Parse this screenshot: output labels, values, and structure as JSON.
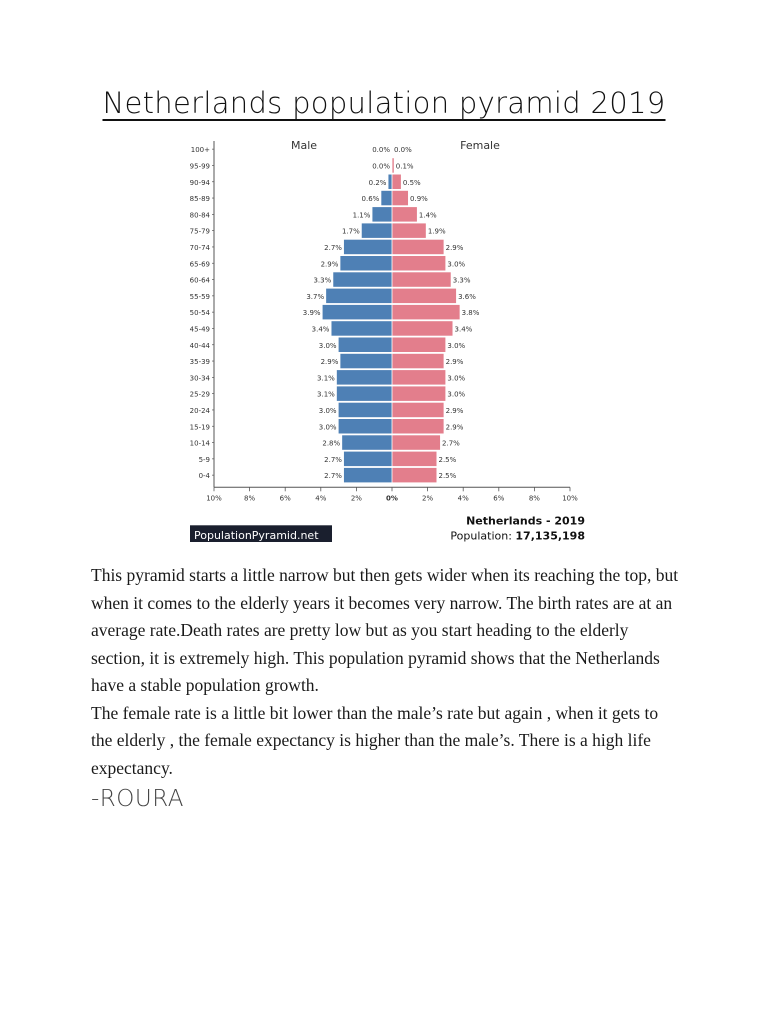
{
  "title": "Netherlands population pyramid 2019",
  "chart_data": {
    "type": "bar",
    "orientation": "horizontal-pyramid",
    "male_label": "Male",
    "female_label": "Female",
    "age_groups": [
      "0-4",
      "5-9",
      "10-14",
      "15-19",
      "20-24",
      "25-29",
      "30-34",
      "35-39",
      "40-44",
      "45-49",
      "50-54",
      "55-59",
      "60-64",
      "65-69",
      "70-74",
      "75-79",
      "80-84",
      "85-89",
      "90-94",
      "95-99",
      "100+"
    ],
    "series": [
      {
        "name": "Male",
        "color": "#4e80b5",
        "values": [
          2.7,
          2.7,
          2.8,
          3.0,
          3.0,
          3.1,
          3.1,
          2.9,
          3.0,
          3.4,
          3.9,
          3.7,
          3.3,
          2.9,
          2.7,
          1.7,
          1.1,
          0.6,
          0.2,
          0.0,
          0.0
        ],
        "labels": [
          "2.7%",
          "2.7%",
          "2.8%",
          "3.0%",
          "3.0%",
          "3.1%",
          "3.1%",
          "2.9%",
          "3.0%",
          "3.4%",
          "3.9%",
          "3.7%",
          "3.3%",
          "2.9%",
          "2.7%",
          "1.7%",
          "1.1%",
          "0.6%",
          "0.2%",
          "0.0%",
          "0.0%"
        ]
      },
      {
        "name": "Female",
        "color": "#e37e8c",
        "values": [
          2.5,
          2.5,
          2.7,
          2.9,
          2.9,
          3.0,
          3.0,
          2.9,
          3.0,
          3.4,
          3.8,
          3.6,
          3.3,
          3.0,
          2.9,
          1.9,
          1.4,
          0.9,
          0.5,
          0.1,
          0.0
        ],
        "labels": [
          "2.5%",
          "2.5%",
          "2.7%",
          "2.9%",
          "2.9%",
          "3.0%",
          "3.0%",
          "2.9%",
          "3.0%",
          "3.4%",
          "3.8%",
          "3.6%",
          "3.3%",
          "3.0%",
          "2.9%",
          "1.9%",
          "1.4%",
          "0.9%",
          "0.5%",
          "0.1%",
          "0.0%"
        ]
      }
    ],
    "x_ticks": [
      "10%",
      "8%",
      "6%",
      "4%",
      "2%",
      "0%",
      "2%",
      "4%",
      "6%",
      "8%",
      "10%"
    ],
    "xlim": [
      -10,
      10
    ],
    "caption_country": "Netherlands - 2019",
    "caption_population_label": "Population:",
    "caption_population_value": "17,135,198",
    "brand": "PopulationPyramid.net"
  },
  "paragraphs": [
    "This pyramid starts a little narrow but then gets wider when its reaching the top, but when it comes to the elderly years it becomes very narrow. The birth rates are at an average rate.Death rates are pretty low but as you start heading to the elderly section, it is extremely high. This population pyramid shows that the Netherlands have a stable population growth.",
    "The female rate is a little bit lower than the male’s rate but again , when it gets to the elderly , the female expectancy is higher than the male’s. There is a high life expectancy."
  ],
  "signature": "-ROURA"
}
